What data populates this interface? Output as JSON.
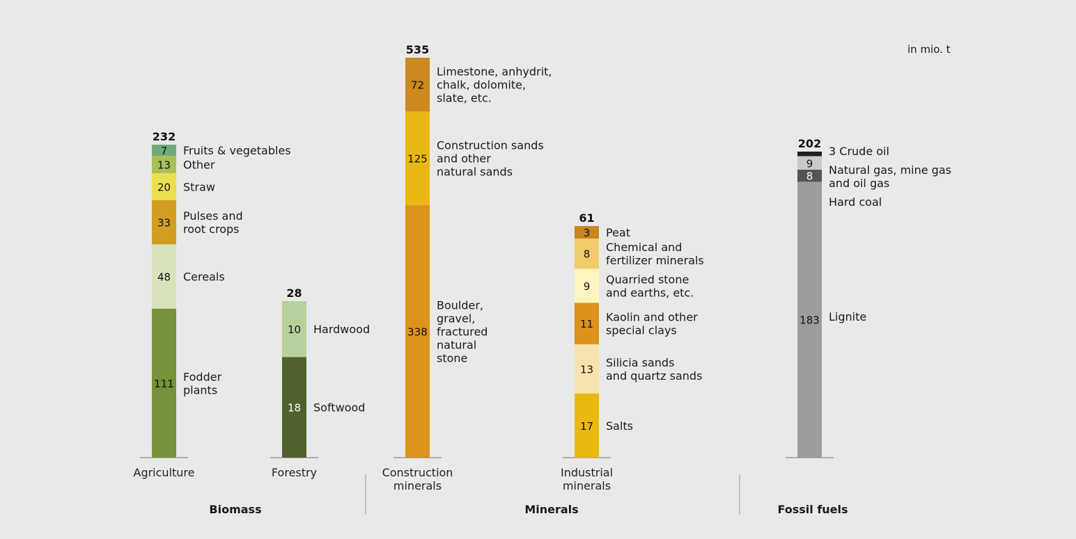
{
  "chart_data": {
    "type": "bar",
    "stacked": true,
    "unit_label": "in mio. t",
    "groups": [
      {
        "name": "Biomass",
        "categories": [
          "Agriculture",
          "Forestry"
        ]
      },
      {
        "name": "Minerals",
        "categories": [
          "Construction minerals",
          "Industrial minerals"
        ]
      },
      {
        "name": "Fossil fuels",
        "categories": [
          "Fossil fuels"
        ]
      }
    ],
    "bars": [
      {
        "category": "Agriculture",
        "category_lines": [
          "Agriculture"
        ],
        "total": 232,
        "segments": [
          {
            "name": "Fodder plants",
            "label_lines": [
              "Fodder",
              "plants"
            ],
            "value": 111,
            "color": "#76923a",
            "text_color": "#111111"
          },
          {
            "name": "Cereals",
            "label_lines": [
              "Cereals"
            ],
            "value": 48,
            "color": "#d8e3bd",
            "text_color": "#111111"
          },
          {
            "name": "Pulses and root crops",
            "label_lines": [
              "Pulses and",
              "root crops"
            ],
            "value": 33,
            "color": "#d29e22",
            "text_color": "#111111"
          },
          {
            "name": "Straw",
            "label_lines": [
              "Straw"
            ],
            "value": 20,
            "color": "#ebdf4e",
            "text_color": "#111111"
          },
          {
            "name": "Other",
            "label_lines": [
              "Other"
            ],
            "value": 13,
            "color": "#a9c058",
            "text_color": "#111111"
          },
          {
            "name": "Fruits & vegetables",
            "label_lines": [
              "Fruits & vegetables"
            ],
            "value": 7,
            "color": "#70a97a",
            "text_color": "#111111"
          }
        ]
      },
      {
        "category": "Forestry",
        "category_lines": [
          "Forestry"
        ],
        "total": 28,
        "segments": [
          {
            "name": "Softwood",
            "label_lines": [
              "Softwood"
            ],
            "value": 18,
            "color": "#4f622c",
            "text_color": "#ffffff"
          },
          {
            "name": "Hardwood",
            "label_lines": [
              "Hardwood"
            ],
            "value": 10,
            "color": "#b7d19c",
            "text_color": "#111111"
          }
        ]
      },
      {
        "category": "Construction minerals",
        "category_lines": [
          "Construction",
          "minerals"
        ],
        "total": 535,
        "segments": [
          {
            "name": "Boulder, gravel, fractured natural stone",
            "label_lines": [
              "Boulder,",
              "gravel,",
              "fractured",
              "natural",
              "stone"
            ],
            "value": 338,
            "color": "#dc931c",
            "text_color": "#111111"
          },
          {
            "name": "Construction sands and other natural sands",
            "label_lines": [
              "Construction sands",
              "and other",
              "natural sands"
            ],
            "value": 125,
            "color": "#ebb811",
            "text_color": "#111111"
          },
          {
            "name": "Limestone, anhydrit, chalk, dolomite, slate, etc.",
            "label_lines": [
              "Limestone, anhydrit,",
              "chalk, dolomite,",
              "slate, etc."
            ],
            "value": 72,
            "color": "#cc891f",
            "text_color": "#111111"
          }
        ]
      },
      {
        "category": "Industrial minerals",
        "category_lines": [
          "Industrial",
          "minerals"
        ],
        "total": 61,
        "segments": [
          {
            "name": "Salts",
            "label_lines": [
              "Salts"
            ],
            "value": 17,
            "color": "#ebb811",
            "text_color": "#111111"
          },
          {
            "name": "Silicia sands and quartz sands",
            "label_lines": [
              "Silicia sands",
              "and quartz sands"
            ],
            "value": 13,
            "color": "#f7e3b0",
            "text_color": "#111111"
          },
          {
            "name": "Kaolin and other special clays",
            "label_lines": [
              "Kaolin and other",
              "special clays"
            ],
            "value": 11,
            "color": "#dc931c",
            "text_color": "#111111"
          },
          {
            "name": "Quarried stone and earths, etc.",
            "label_lines": [
              "Quarried stone",
              "and earths, etc."
            ],
            "value": 9,
            "color": "#fdf5c0",
            "text_color": "#111111"
          },
          {
            "name": "Chemical and fertilizer minerals",
            "label_lines": [
              "Chemical and",
              "fertilizer minerals"
            ],
            "value": 8,
            "color": "#f1cc6a",
            "text_color": "#111111"
          },
          {
            "name": "Peat",
            "label_lines": [
              "Peat"
            ],
            "value": 3,
            "color": "#c9861f",
            "text_color": "#111111"
          }
        ]
      },
      {
        "category": "Fossil fuels",
        "category_lines": [],
        "total": 202,
        "segments": [
          {
            "name": "Lignite",
            "label_lines": [
              "Lignite"
            ],
            "value": 183,
            "color": "#9c9c9c",
            "text_color": "#111111"
          },
          {
            "name": "Hard coal",
            "label_lines": [
              "Hard coal"
            ],
            "value": 8,
            "color": "#545454",
            "text_color": "#ffffff"
          },
          {
            "name": "Natural gas, mine gas and oil gas",
            "label_lines": [
              "Natural gas, mine gas",
              "and oil gas"
            ],
            "value": 9,
            "color": "#c9c9c9",
            "text_color": "#111111"
          },
          {
            "name": "Crude oil",
            "label_lines": [
              "3 Crude oil"
            ],
            "value": 3,
            "color": "#1e1e1e",
            "text_color": "#111111",
            "value_outside": true
          }
        ]
      }
    ]
  }
}
